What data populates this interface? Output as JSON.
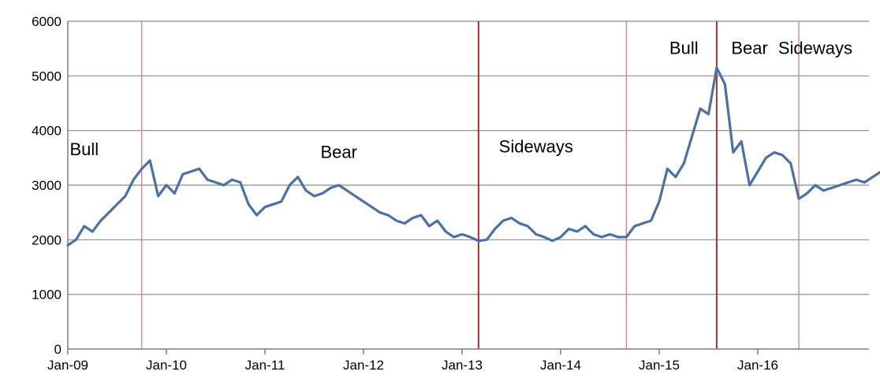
{
  "chart_data": {
    "type": "line",
    "title": "",
    "xlabel": "",
    "ylabel": "",
    "ylim": [
      0,
      6000
    ],
    "y_ticks": [
      0,
      1000,
      2000,
      3000,
      4000,
      5000,
      6000
    ],
    "x_range": [
      "2009-01",
      "2016-12"
    ],
    "x_ticks": [
      {
        "date": "2009-01",
        "label": "Jan-09"
      },
      {
        "date": "2010-01",
        "label": "Jan-10"
      },
      {
        "date": "2011-01",
        "label": "Jan-11"
      },
      {
        "date": "2012-01",
        "label": "Jan-12"
      },
      {
        "date": "2013-01",
        "label": "Jan-13"
      },
      {
        "date": "2014-01",
        "label": "Jan-14"
      },
      {
        "date": "2015-01",
        "label": "Jan-15"
      },
      {
        "date": "2016-01",
        "label": "Jan-16"
      }
    ],
    "grid": {
      "horizontal": true,
      "vertical": false
    },
    "colors": {
      "series": "#4a70a8",
      "grid": "#8c8c8c",
      "axis": "#7f7f7f",
      "divider_light": "#d97f7f",
      "divider_dark": "#a82e2e"
    },
    "series": [
      {
        "points": [
          [
            "2009-01",
            1900
          ],
          [
            "2009-02",
            2000
          ],
          [
            "2009-03",
            2250
          ],
          [
            "2009-04",
            2150
          ],
          [
            "2009-05",
            2350
          ],
          [
            "2009-06",
            2500
          ],
          [
            "2009-07",
            2650
          ],
          [
            "2009-08",
            2800
          ],
          [
            "2009-09",
            3100
          ],
          [
            "2009-10",
            3300
          ],
          [
            "2009-11",
            3450
          ],
          [
            "2009-12",
            2800
          ],
          [
            "2010-01",
            3000
          ],
          [
            "2010-02",
            2850
          ],
          [
            "2010-03",
            3200
          ],
          [
            "2010-04",
            3250
          ],
          [
            "2010-05",
            3300
          ],
          [
            "2010-06",
            3100
          ],
          [
            "2010-07",
            3050
          ],
          [
            "2010-08",
            3000
          ],
          [
            "2010-09",
            3100
          ],
          [
            "2010-10",
            3050
          ],
          [
            "2010-11",
            2650
          ],
          [
            "2010-12",
            2450
          ],
          [
            "2011-01",
            2600
          ],
          [
            "2011-02",
            2650
          ],
          [
            "2011-03",
            2700
          ],
          [
            "2011-04",
            3000
          ],
          [
            "2011-05",
            3150
          ],
          [
            "2011-06",
            2900
          ],
          [
            "2011-07",
            2800
          ],
          [
            "2011-08",
            2850
          ],
          [
            "2011-09",
            2950
          ],
          [
            "2011-10",
            3000
          ],
          [
            "2011-11",
            2900
          ],
          [
            "2011-12",
            2800
          ],
          [
            "2012-01",
            2700
          ],
          [
            "2012-02",
            2600
          ],
          [
            "2012-03",
            2500
          ],
          [
            "2012-04",
            2450
          ],
          [
            "2012-05",
            2350
          ],
          [
            "2012-06",
            2300
          ],
          [
            "2012-07",
            2400
          ],
          [
            "2012-08",
            2450
          ],
          [
            "2012-09",
            2250
          ],
          [
            "2012-10",
            2350
          ],
          [
            "2012-11",
            2150
          ],
          [
            "2012-12",
            2050
          ],
          [
            "2013-01",
            2100
          ],
          [
            "2013-02",
            2050
          ],
          [
            "2013-03",
            1980
          ],
          [
            "2013-04",
            2000
          ],
          [
            "2013-05",
            2200
          ],
          [
            "2013-06",
            2350
          ],
          [
            "2013-07",
            2400
          ],
          [
            "2013-08",
            2300
          ],
          [
            "2013-09",
            2250
          ],
          [
            "2013-10",
            2100
          ],
          [
            "2013-11",
            2050
          ],
          [
            "2013-12",
            1980
          ],
          [
            "2014-01",
            2050
          ],
          [
            "2014-02",
            2200
          ],
          [
            "2014-03",
            2150
          ],
          [
            "2014-04",
            2250
          ],
          [
            "2014-05",
            2100
          ],
          [
            "2014-06",
            2050
          ],
          [
            "2014-07",
            2100
          ],
          [
            "2014-08",
            2050
          ],
          [
            "2014-09",
            2050
          ],
          [
            "2014-10",
            2250
          ],
          [
            "2014-11",
            2300
          ],
          [
            "2014-12",
            2350
          ],
          [
            "2015-01",
            2700
          ],
          [
            "2015-02",
            3300
          ],
          [
            "2015-03",
            3150
          ],
          [
            "2015-04",
            3400
          ],
          [
            "2015-05",
            3900
          ],
          [
            "2015-06",
            4400
          ],
          [
            "2015-07",
            4300
          ],
          [
            "2015-08",
            5150
          ],
          [
            "2015-09",
            4850
          ],
          [
            "2015-10",
            3600
          ],
          [
            "2015-11",
            3800
          ],
          [
            "2015-12",
            3000
          ],
          [
            "2016-01",
            3250
          ],
          [
            "2016-02",
            3500
          ],
          [
            "2016-03",
            3600
          ],
          [
            "2016-04",
            3550
          ],
          [
            "2016-05",
            3400
          ],
          [
            "2016-06",
            2750
          ],
          [
            "2016-07",
            2850
          ],
          [
            "2016-08",
            3000
          ],
          [
            "2016-09",
            2900
          ],
          [
            "2016-10",
            2950
          ],
          [
            "2016-11",
            3000
          ],
          [
            "2016-12",
            3050
          ],
          [
            "2017-01",
            3100
          ],
          [
            "2017-02",
            3050
          ],
          [
            "2017-03",
            3150
          ],
          [
            "2017-04",
            3250
          ],
          [
            "2017-05",
            3150
          ]
        ]
      }
    ],
    "dividers": [
      {
        "date": "2009-10",
        "style": "light"
      },
      {
        "date": "2013-03",
        "style": "dark"
      },
      {
        "date": "2014-09",
        "style": "light"
      },
      {
        "date": "2015-08",
        "style": "dark"
      },
      {
        "date": "2016-06",
        "style": "light"
      }
    ],
    "annotations": [
      {
        "text": "Bull",
        "date": "2009-03",
        "value": 3550
      },
      {
        "text": "Bear",
        "date": "2011-10",
        "value": 3500
      },
      {
        "text": "Sideways",
        "date": "2013-10",
        "value": 3600
      },
      {
        "text": "Bull",
        "date": "2015-04",
        "value": 5400
      },
      {
        "text": "Bear",
        "date": "2015-12",
        "value": 5400
      },
      {
        "text": "Sideways",
        "date": "2016-08",
        "value": 5400
      }
    ]
  }
}
